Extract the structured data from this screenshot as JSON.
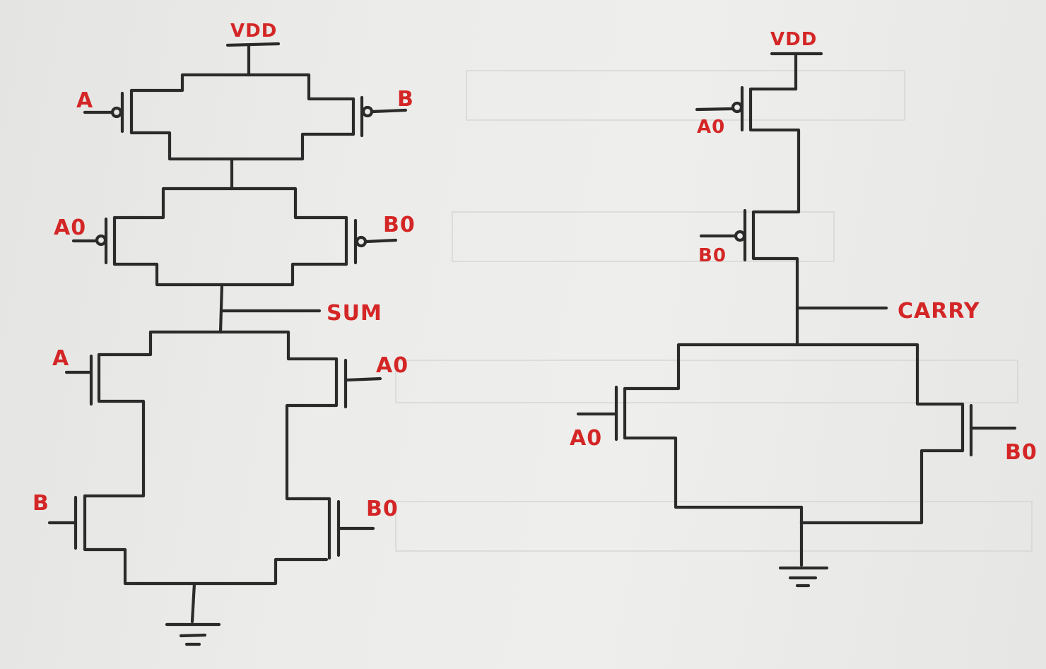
{
  "sum_circuit": {
    "supply": "VDD",
    "output": "SUM",
    "pmos_stage1": {
      "left_input": "A",
      "right_input": "B"
    },
    "pmos_stage2": {
      "left_input": "A0",
      "right_input": "B0"
    },
    "nmos_top": {
      "left_input": "A",
      "right_input": "A0"
    },
    "nmos_bottom": {
      "left_input": "B",
      "right_input": "B0"
    }
  },
  "carry_circuit": {
    "supply": "VDD",
    "output": "CARRY",
    "pmos_upper": {
      "input": "A0"
    },
    "pmos_lower": {
      "input": "B0"
    },
    "nmos_left": {
      "input": "A0"
    },
    "nmos_right": {
      "input": "B0"
    }
  },
  "colors": {
    "ink": "#2b2b2b",
    "label": "#d42626",
    "paper": "#ececea"
  }
}
